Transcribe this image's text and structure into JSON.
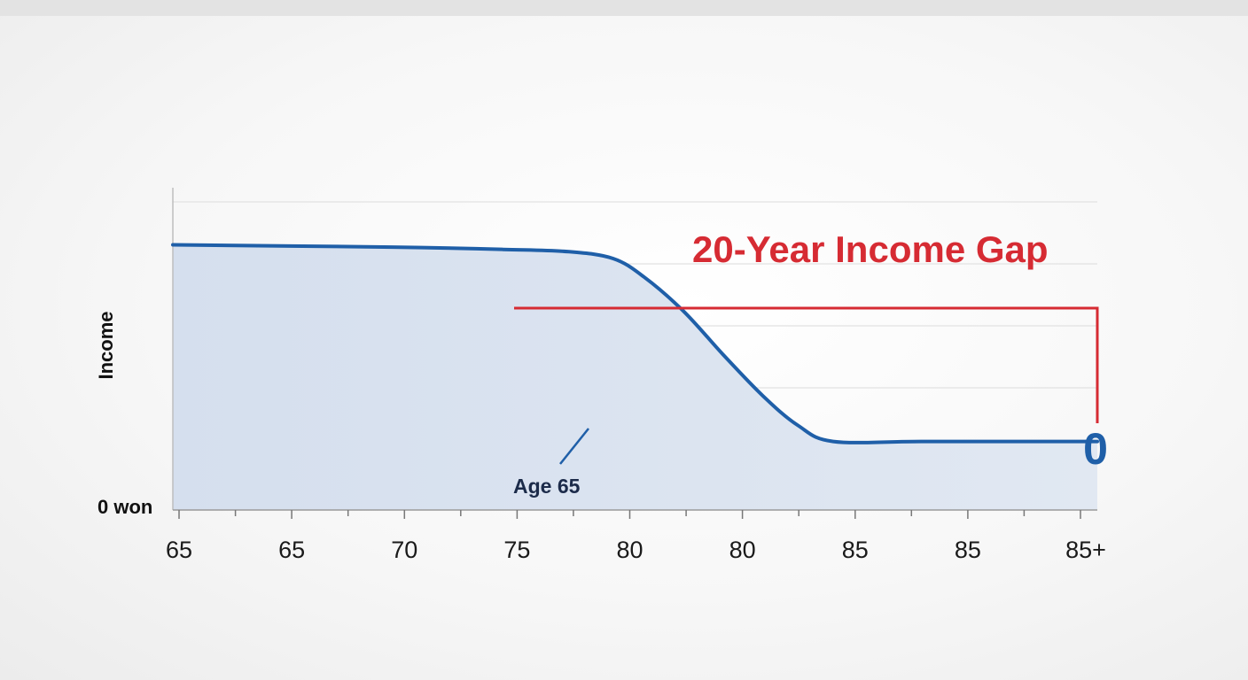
{
  "chart_data": {
    "type": "area",
    "title": "20-Year Income Gap",
    "ylabel": "Income",
    "y_min_label": "0 won",
    "x_tick_labels": [
      "65",
      "65",
      "70",
      "75",
      "80",
      "80",
      "85",
      "85",
      "85+"
    ],
    "x": [
      65,
      70,
      72.5,
      74,
      75,
      75.7,
      76.6,
      77.5,
      78.4,
      79.2,
      80,
      82,
      85,
      86
    ],
    "values": [
      100,
      99,
      98,
      97,
      94,
      86,
      71,
      52,
      34,
      21,
      14,
      14,
      14,
      14
    ],
    "xlim": [
      65,
      86
    ],
    "ylim": [
      -16,
      125
    ],
    "grid": true,
    "annotations": [
      {
        "text": "Age 65"
      },
      {
        "text": "0"
      }
    ],
    "colors": {
      "line": "#1f5fa8",
      "fill": "#d9e3f0",
      "gap_bracket": "#d62b33",
      "grid": "#e2e2e2"
    }
  }
}
